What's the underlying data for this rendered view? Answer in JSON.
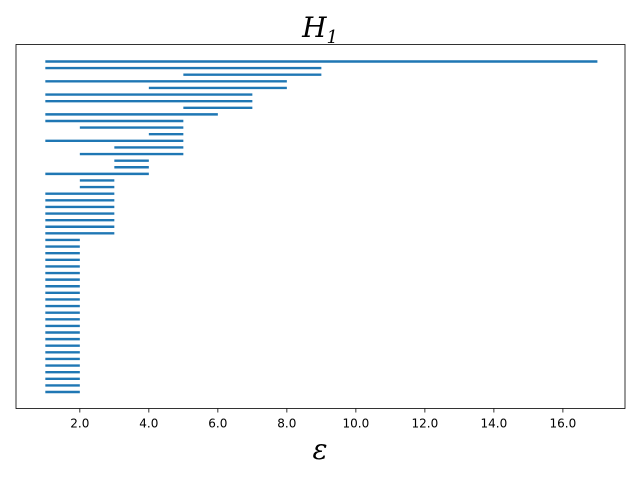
{
  "chart_data": {
    "type": "barcode",
    "title": "H",
    "title_subscript": "1",
    "xlabel": "ε",
    "ylabel": "",
    "xlim": [
      0.15,
      17.8
    ],
    "xticks": [
      2,
      4,
      6,
      8,
      10,
      12,
      14,
      16
    ],
    "xtick_labels": [
      "2.0",
      "4.0",
      "6.0",
      "8.0",
      "10.0",
      "12.0",
      "14.0",
      "16.0"
    ],
    "yticks_visible": false,
    "grid": false,
    "bar_color": "#1f77b4",
    "intervals": [
      [
        1,
        17
      ],
      [
        1,
        9
      ],
      [
        5,
        9
      ],
      [
        1,
        8
      ],
      [
        4,
        8
      ],
      [
        1,
        7
      ],
      [
        1,
        7
      ],
      [
        5,
        7
      ],
      [
        1,
        6
      ],
      [
        1,
        5
      ],
      [
        2,
        5
      ],
      [
        4,
        5
      ],
      [
        1,
        5
      ],
      [
        3,
        5
      ],
      [
        2,
        5
      ],
      [
        3,
        4
      ],
      [
        3,
        4
      ],
      [
        1,
        4
      ],
      [
        2,
        3
      ],
      [
        2,
        3
      ],
      [
        1,
        3
      ],
      [
        1,
        3
      ],
      [
        1,
        3
      ],
      [
        1,
        3
      ],
      [
        1,
        3
      ],
      [
        1,
        3
      ],
      [
        1,
        3
      ],
      [
        1,
        2
      ],
      [
        1,
        2
      ],
      [
        1,
        2
      ],
      [
        1,
        2
      ],
      [
        1,
        2
      ],
      [
        1,
        2
      ],
      [
        1,
        2
      ],
      [
        1,
        2
      ],
      [
        1,
        2
      ],
      [
        1,
        2
      ],
      [
        1,
        2
      ],
      [
        1,
        2
      ],
      [
        1,
        2
      ],
      [
        1,
        2
      ],
      [
        1,
        2
      ],
      [
        1,
        2
      ],
      [
        1,
        2
      ],
      [
        1,
        2
      ],
      [
        1,
        2
      ],
      [
        1,
        2
      ],
      [
        1,
        2
      ],
      [
        1,
        2
      ],
      [
        1,
        2
      ],
      [
        1,
        2
      ]
    ]
  }
}
